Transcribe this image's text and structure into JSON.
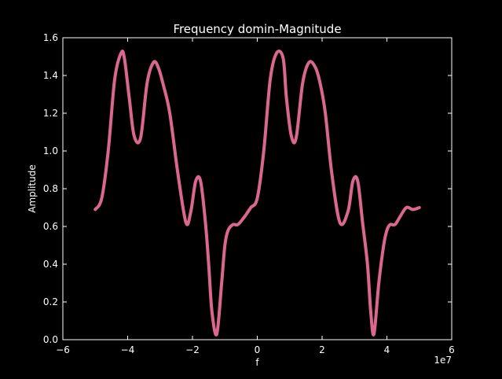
{
  "chart_data": {
    "type": "line",
    "title": "Frequency domin-Magnitude",
    "xlabel": "f",
    "ylabel": "Amplitude",
    "x_offset_label": "1e7",
    "xlim": [
      -6,
      6
    ],
    "ylim": [
      0.0,
      1.6
    ],
    "xticks": [
      -6,
      -4,
      -2,
      0,
      2,
      4,
      6
    ],
    "xtick_labels": [
      "−6",
      "−4",
      "−2",
      "0",
      "2",
      "4",
      "6"
    ],
    "yticks": [
      0.0,
      0.2,
      0.4,
      0.6,
      0.8,
      1.0,
      1.2,
      1.4,
      1.6
    ],
    "ytick_labels": [
      "0.0",
      "0.2",
      "0.4",
      "0.6",
      "0.8",
      "1.0",
      "1.2",
      "1.4",
      "1.6"
    ],
    "grid": false,
    "colors": {
      "background": "#000000",
      "line": "#d9678f",
      "axes": "#ffffff"
    },
    "series": [
      {
        "x": [
          -5.0,
          -4.8,
          -4.6,
          -4.4,
          -4.2,
          -4.1,
          -3.95,
          -3.8,
          -3.6,
          -3.4,
          -3.2,
          -3.05,
          -2.9,
          -2.7,
          -2.45,
          -2.2,
          -2.05,
          -1.9,
          -1.75,
          -1.6,
          -1.5,
          -1.4,
          -1.25,
          -1.1,
          -1.0,
          -0.9,
          -0.75,
          -0.6,
          -0.4,
          -0.2,
          0.0,
          0.2,
          0.4,
          0.6,
          0.8,
          0.9,
          1.05,
          1.2,
          1.4,
          1.6,
          1.8,
          1.95,
          2.1,
          2.3,
          2.55,
          2.8,
          2.95,
          3.1,
          3.25,
          3.4,
          3.5,
          3.6,
          3.75,
          3.9,
          4.0,
          4.1,
          4.25,
          4.4,
          4.6,
          4.8,
          5.0
        ],
        "y": [
          0.69,
          0.75,
          1.0,
          1.38,
          1.52,
          1.49,
          1.28,
          1.08,
          1.07,
          1.36,
          1.47,
          1.44,
          1.35,
          1.2,
          0.88,
          0.62,
          0.68,
          0.84,
          0.84,
          0.62,
          0.4,
          0.15,
          0.03,
          0.3,
          0.5,
          0.58,
          0.61,
          0.61,
          0.65,
          0.7,
          0.75,
          1.0,
          1.38,
          1.52,
          1.49,
          1.28,
          1.08,
          1.07,
          1.36,
          1.47,
          1.44,
          1.35,
          1.2,
          0.88,
          0.62,
          0.68,
          0.84,
          0.84,
          0.62,
          0.4,
          0.15,
          0.03,
          0.3,
          0.5,
          0.58,
          0.61,
          0.61,
          0.65,
          0.7,
          0.69,
          0.7
        ]
      }
    ]
  }
}
